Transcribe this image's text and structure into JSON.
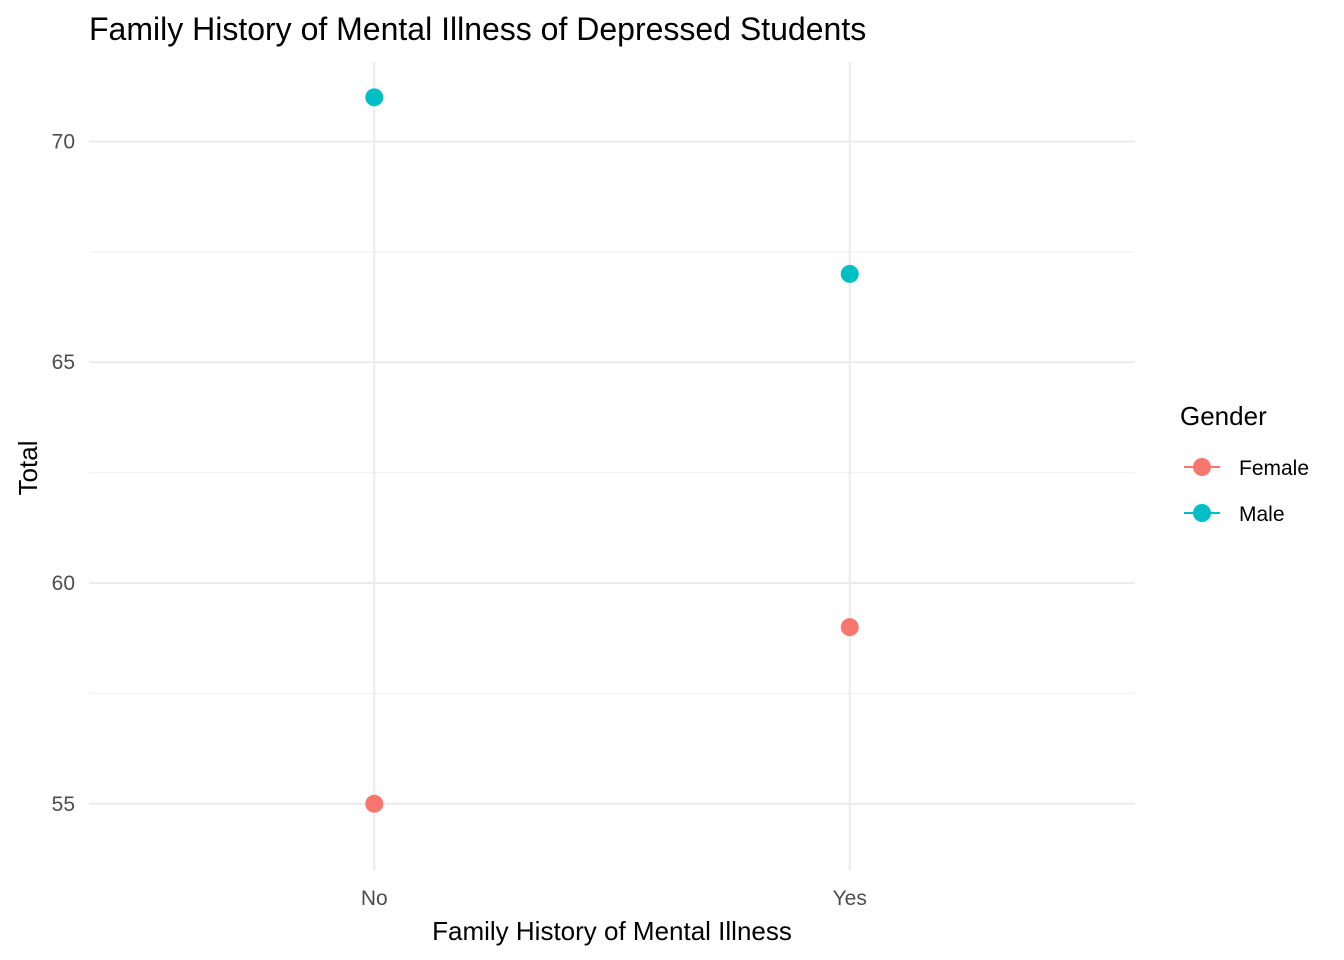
{
  "chart_data": {
    "type": "scatter",
    "title": "Family History of Mental Illness of Depressed Students",
    "xlabel": "Family History of Mental Illness",
    "ylabel": "Total",
    "categories": [
      "No",
      "Yes"
    ],
    "ylim": [
      53.5,
      71.8
    ],
    "yticks": [
      55,
      60,
      65,
      70
    ],
    "grid": true,
    "legend": {
      "title": "Gender",
      "position": "right"
    },
    "series": [
      {
        "name": "Female",
        "color": "#F8766D",
        "values": [
          55,
          59
        ]
      },
      {
        "name": "Male",
        "color": "#00BFC4",
        "values": [
          71,
          67
        ]
      }
    ]
  }
}
